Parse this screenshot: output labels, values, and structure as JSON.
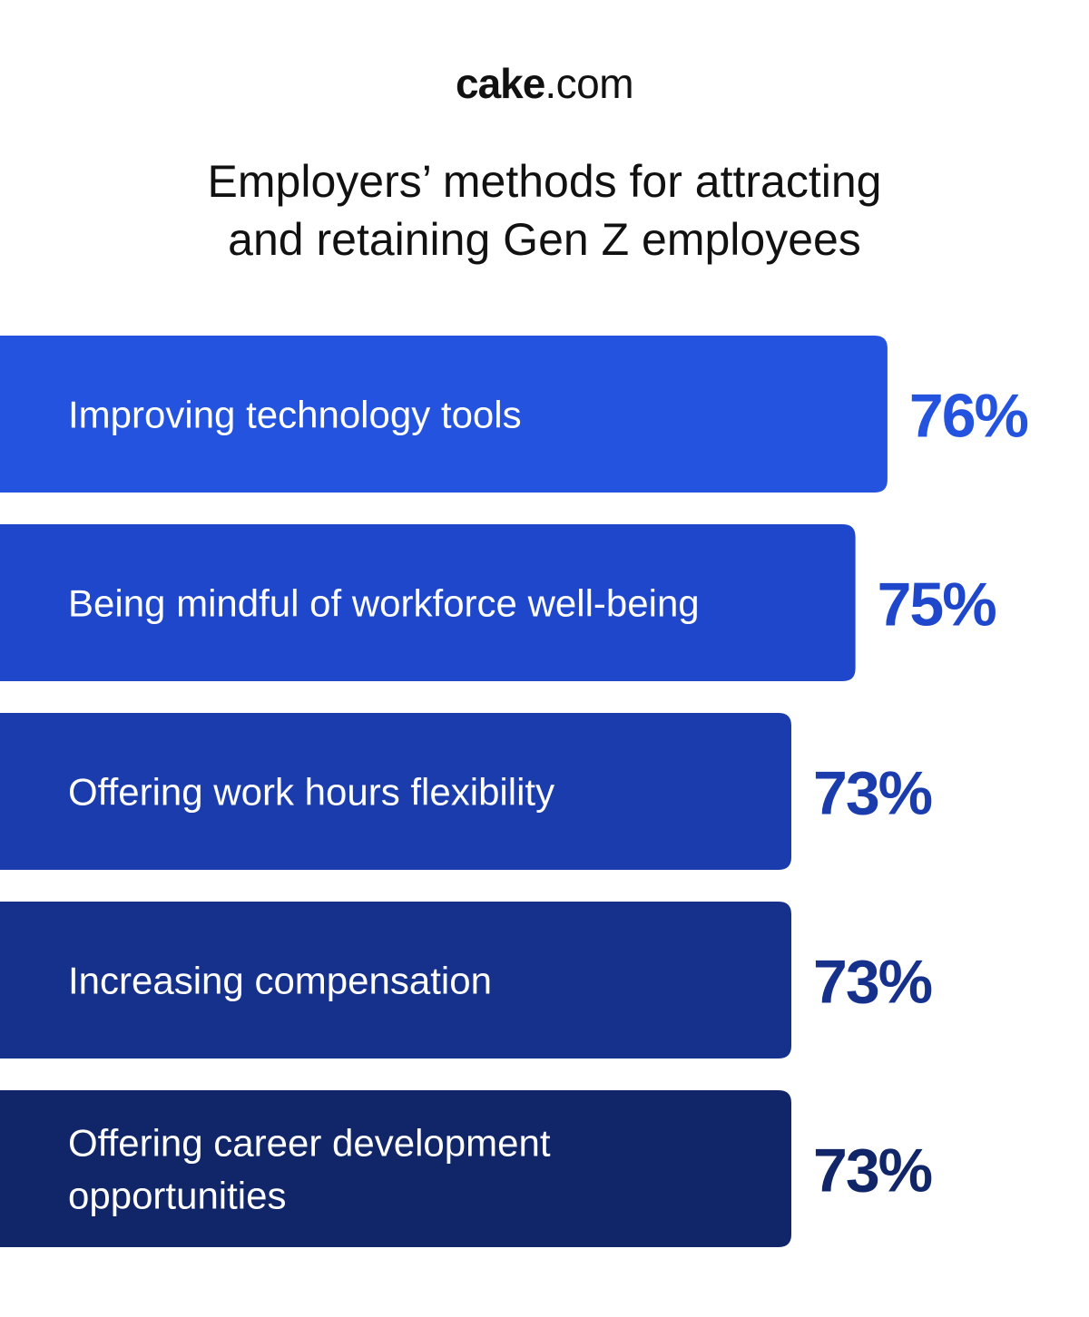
{
  "logo": {
    "bold": "cake",
    "light": ".com"
  },
  "title_lines": [
    "Employers’ methods for attracting",
    "and retaining Gen Z employees"
  ],
  "chart_data": {
    "type": "bar",
    "orientation": "horizontal",
    "categories": [
      [
        "Improving technology tools"
      ],
      [
        "Being mindful of workforce well-being"
      ],
      [
        "Offering work hours flexibility"
      ],
      [
        "Increasing compensation"
      ],
      [
        "Offering career development",
        "opportunities"
      ]
    ],
    "values": [
      76,
      75,
      73,
      73,
      73
    ],
    "value_labels": [
      "76%",
      "75%",
      "73%",
      "73%",
      "73%"
    ],
    "bar_colors": [
      "#2453e0",
      "#1e47cc",
      "#1a3cac",
      "#16318c",
      "#112668"
    ],
    "value_colors": [
      "#2453e0",
      "#1e47cc",
      "#1a3cac",
      "#16318c",
      "#112668"
    ],
    "grid": false,
    "legend": "none"
  }
}
